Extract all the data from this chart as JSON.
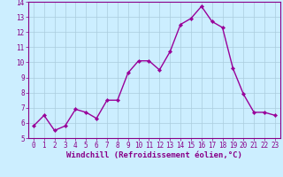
{
  "x": [
    0,
    1,
    2,
    3,
    4,
    5,
    6,
    7,
    8,
    9,
    10,
    11,
    12,
    13,
    14,
    15,
    16,
    17,
    18,
    19,
    20,
    21,
    22,
    23
  ],
  "y": [
    5.8,
    6.5,
    5.5,
    5.8,
    6.9,
    6.7,
    6.3,
    7.5,
    7.5,
    9.3,
    10.1,
    10.1,
    9.5,
    10.7,
    12.5,
    12.9,
    13.7,
    12.7,
    12.3,
    9.6,
    7.9,
    6.7,
    6.7,
    6.5
  ],
  "line_color": "#990099",
  "marker": "D",
  "markersize": 2.2,
  "linewidth": 1.0,
  "bg_color": "#cceeff",
  "grid_color": "#aaccdd",
  "xlabel": "Windchill (Refroidissement éolien,°C)",
  "xlim": [
    -0.5,
    23.5
  ],
  "ylim": [
    5,
    14
  ],
  "yticks": [
    5,
    6,
    7,
    8,
    9,
    10,
    11,
    12,
    13,
    14
  ],
  "xticks": [
    0,
    1,
    2,
    3,
    4,
    5,
    6,
    7,
    8,
    9,
    10,
    11,
    12,
    13,
    14,
    15,
    16,
    17,
    18,
    19,
    20,
    21,
    22,
    23
  ],
  "tick_color": "#880088",
  "tick_fontsize": 5.5,
  "xlabel_fontsize": 6.5,
  "border_color": "#880088"
}
